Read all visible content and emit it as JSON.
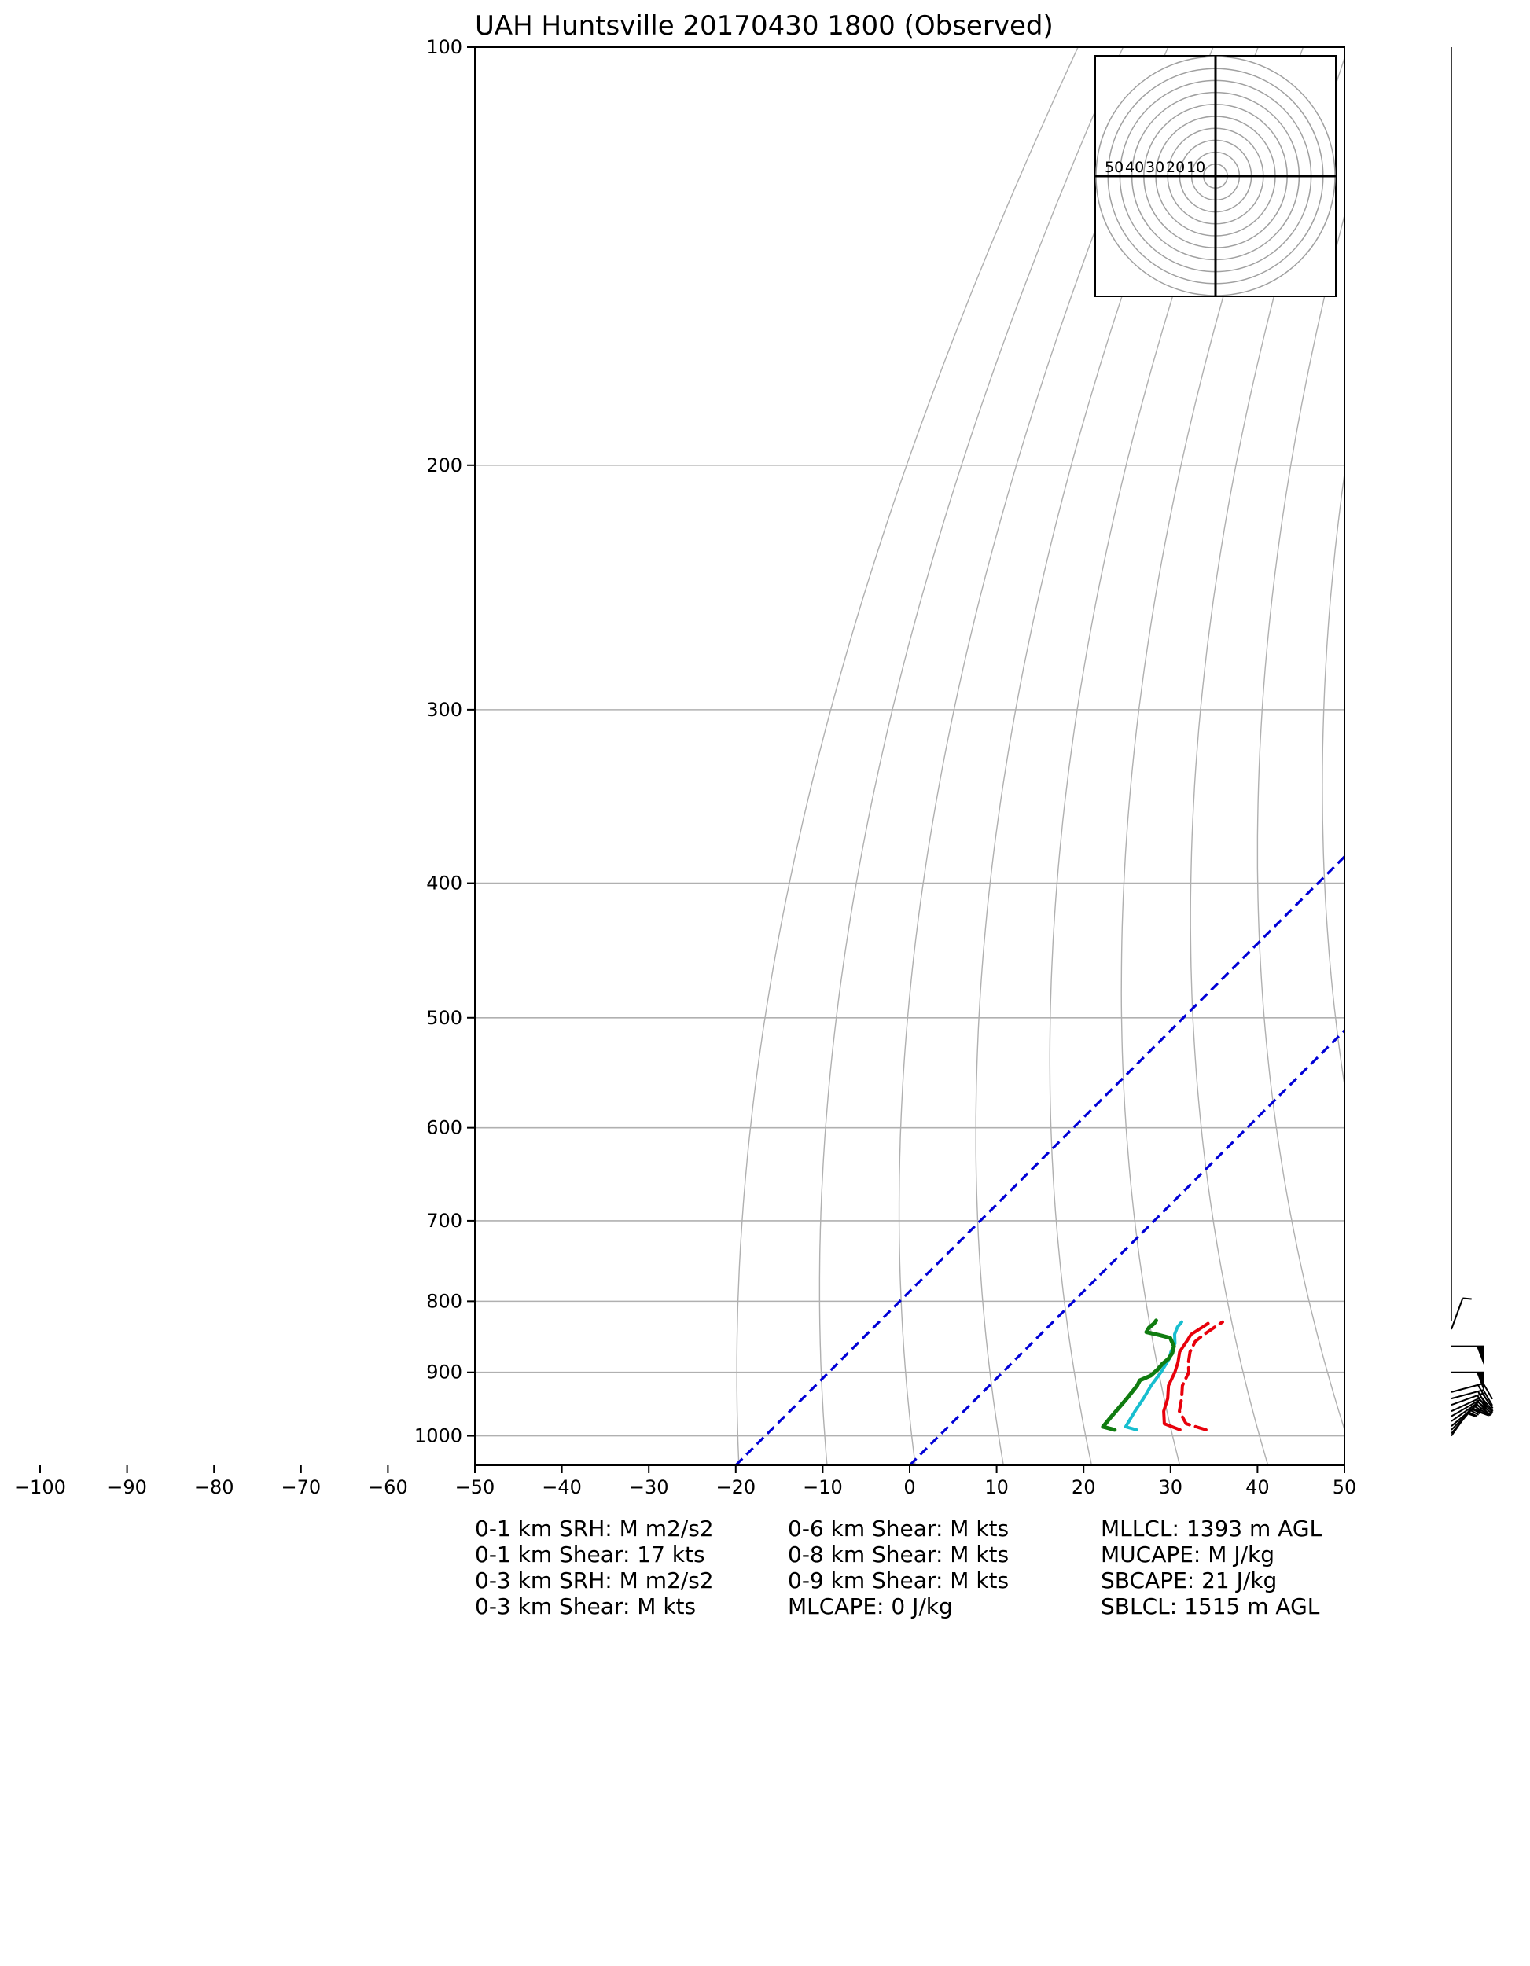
{
  "chart_data": {
    "type": "skew-t",
    "title": "UAH Huntsville 20170430 1800   (Observed)",
    "pressure_levels": [
      100,
      200,
      300,
      400,
      500,
      600,
      700,
      800,
      900,
      1000
    ],
    "pressure_range": [
      100,
      1050
    ],
    "temperature_ticks": [
      -100,
      -90,
      -80,
      -70,
      -60,
      -50,
      -40,
      -30,
      -20,
      -10,
      0,
      10,
      20,
      30,
      40,
      50
    ],
    "temperature_range": [
      -50,
      50
    ],
    "grid": true,
    "colors": {
      "temperature": "#e8000b",
      "dewpoint": "#107c10",
      "wetbulb": "#17becf",
      "virtual_temperature": "#e8000b",
      "isotherm_highlight": "#0000d6",
      "dry_adiabat": "#b0b0b0",
      "grid": "#b0b0b0"
    },
    "highlight_isotherms": [
      -20,
      0
    ],
    "series": [
      {
        "key": "temperature",
        "style": "solid",
        "points": [
          [
            990,
            27.0
          ],
          [
            980,
            24.5
          ],
          [
            960,
            23.0
          ],
          [
            940,
            22.0
          ],
          [
            920,
            20.6
          ],
          [
            900,
            19.8
          ],
          [
            885,
            19.0
          ],
          [
            870,
            18.0
          ],
          [
            855,
            17.6
          ],
          [
            845,
            17.3
          ],
          [
            835,
            17.8
          ],
          [
            830,
            18.0
          ]
        ]
      },
      {
        "key": "virtual_temperature",
        "style": "dashed",
        "points": [
          [
            990,
            30.0
          ],
          [
            980,
            27.0
          ],
          [
            960,
            24.8
          ],
          [
            940,
            23.6
          ],
          [
            920,
            22.2
          ],
          [
            900,
            21.4
          ],
          [
            885,
            20.2
          ],
          [
            870,
            19.2
          ],
          [
            855,
            18.6
          ],
          [
            845,
            18.8
          ],
          [
            835,
            19.2
          ],
          [
            828,
            19.5
          ]
        ]
      },
      {
        "key": "wetbulb",
        "style": "solid",
        "points": [
          [
            990,
            22.0
          ],
          [
            985,
            20.4
          ],
          [
            960,
            19.7
          ],
          [
            940,
            19.2
          ],
          [
            920,
            18.6
          ],
          [
            900,
            18.2
          ],
          [
            890,
            17.9
          ],
          [
            880,
            17.6
          ],
          [
            870,
            17.0
          ],
          [
            858,
            16.5
          ],
          [
            845,
            15.4
          ],
          [
            835,
            14.9
          ],
          [
            828,
            14.8
          ]
        ]
      },
      {
        "key": "dewpoint",
        "style": "solid",
        "points": [
          [
            990,
            19.5
          ],
          [
            985,
            17.8
          ],
          [
            970,
            17.6
          ],
          [
            940,
            17.3
          ],
          [
            920,
            17.0
          ],
          [
            912,
            16.7
          ],
          [
            905,
            17.4
          ],
          [
            895,
            17.5
          ],
          [
            888,
            17.4
          ],
          [
            880,
            17.5
          ],
          [
            872,
            17.3
          ],
          [
            862,
            16.7
          ],
          [
            850,
            15.3
          ],
          [
            846,
            13.7
          ],
          [
            842,
            11.9
          ],
          [
            836,
            11.7
          ],
          [
            830,
            11.8
          ],
          [
            826,
            11.7
          ]
        ]
      }
    ],
    "wind_barbs": [
      {
        "pressure": 838,
        "speed_kts": 5,
        "direction_deg": 200
      },
      {
        "pressure": 862,
        "speed_kts": 50,
        "direction_deg": 270
      },
      {
        "pressure": 900,
        "speed_kts": 50,
        "direction_deg": 270
      },
      {
        "pressure": 930,
        "speed_kts": 20,
        "direction_deg": 255
      },
      {
        "pressure": 940,
        "speed_kts": 20,
        "direction_deg": 255
      },
      {
        "pressure": 950,
        "speed_kts": 20,
        "direction_deg": 250
      },
      {
        "pressure": 960,
        "speed_kts": 20,
        "direction_deg": 245
      },
      {
        "pressure": 968,
        "speed_kts": 15,
        "direction_deg": 240
      },
      {
        "pressure": 976,
        "speed_kts": 15,
        "direction_deg": 235
      },
      {
        "pressure": 984,
        "speed_kts": 15,
        "direction_deg": 230
      },
      {
        "pressure": 990,
        "speed_kts": 15,
        "direction_deg": 225
      },
      {
        "pressure": 996,
        "speed_kts": 15,
        "direction_deg": 220
      },
      {
        "pressure": 1000,
        "speed_kts": 15,
        "direction_deg": 215
      }
    ],
    "hodograph": {
      "ring_labels": [
        "50",
        "40",
        "30",
        "20",
        "10"
      ],
      "rings": [
        5,
        10,
        15,
        20,
        25,
        30,
        35,
        40,
        45,
        50
      ]
    }
  },
  "stats": {
    "col1": [
      "0-1 km SRH: M m2/s2",
      "0-1 km Shear: 17 kts",
      "0-3 km SRH: M m2/s2",
      "0-3 km Shear: M kts"
    ],
    "col2": [
      "0-6 km Shear: M kts",
      "0-8 km Shear: M kts",
      "0-9 km Shear: M kts",
      "MLCAPE: 0 J/kg"
    ],
    "col3": [
      "MLLCL: 1393 m AGL",
      "MUCAPE: M J/kg",
      "SBCAPE: 21 J/kg",
      "SBLCL: 1515 m AGL"
    ]
  }
}
